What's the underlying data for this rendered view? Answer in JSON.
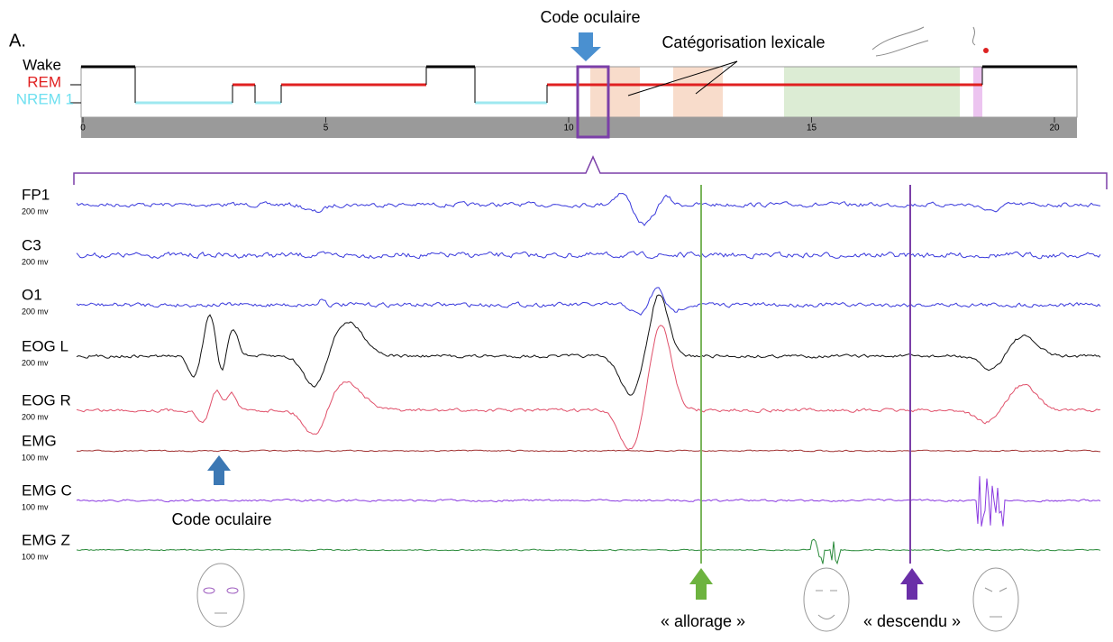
{
  "panel_label": "A.",
  "hypnogram": {
    "stages": [
      "Wake",
      "REM",
      "NREM 1"
    ],
    "xticks": [
      0,
      5,
      10,
      15,
      20
    ]
  },
  "annotations": {
    "top_code": "Code oculaire",
    "lexical": "Catégorisation lexicale",
    "bottom_code": "Code oculaire",
    "word1": "« allorage »",
    "word2": "« descendu »"
  },
  "channels": [
    {
      "name": "FP1",
      "scale": "200 mv"
    },
    {
      "name": "C3",
      "scale": "200 mv"
    },
    {
      "name": "O1",
      "scale": "200 mv"
    },
    {
      "name": "EOG L",
      "scale": "200 mv"
    },
    {
      "name": "EOG R",
      "scale": "200 mv"
    },
    {
      "name": "EMG",
      "scale": "100 mv"
    },
    {
      "name": "EMG C",
      "scale": "100 mv"
    },
    {
      "name": "EMG Z",
      "scale": "100 mv"
    }
  ]
}
